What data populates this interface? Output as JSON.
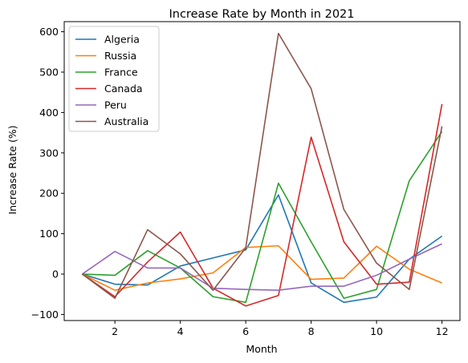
{
  "chart_data": {
    "type": "line",
    "title": "Increase Rate by Month in 2021",
    "xlabel": "Month",
    "ylabel": "Increase Rate (%)",
    "x": [
      1,
      2,
      3,
      4,
      5,
      6,
      7,
      8,
      9,
      10,
      11,
      12
    ],
    "xticks": [
      2,
      4,
      6,
      8,
      10,
      12
    ],
    "yticks": [
      -100,
      0,
      100,
      200,
      300,
      400,
      500,
      600
    ],
    "xlim": [
      0.45,
      12.55
    ],
    "ylim": [
      -115,
      625
    ],
    "grid": false,
    "legend_position": "top-left",
    "series": [
      {
        "name": "Algeria",
        "color": "#1f77b4",
        "values": [
          0,
          -25,
          -27,
          20,
          40,
          60,
          196,
          -22,
          -70,
          -57,
          37,
          94
        ]
      },
      {
        "name": "Russia",
        "color": "#ff7f0e",
        "values": [
          0,
          -40,
          -22,
          -12,
          3,
          66,
          70,
          -13,
          -10,
          69,
          12,
          -22
        ]
      },
      {
        "name": "France",
        "color": "#2ca02c",
        "values": [
          0,
          -3,
          58,
          15,
          -56,
          -70,
          225,
          80,
          -60,
          -38,
          231,
          353
        ]
      },
      {
        "name": "Canada",
        "color": "#d62728",
        "values": [
          0,
          -56,
          30,
          104,
          -35,
          -79,
          -53,
          339,
          80,
          -25,
          -20,
          421
        ]
      },
      {
        "name": "Peru",
        "color": "#9467bd",
        "values": [
          0,
          56,
          15,
          15,
          -35,
          -38,
          -40,
          -30,
          -30,
          -3,
          37,
          75
        ]
      },
      {
        "name": "Australia",
        "color": "#8c564b",
        "values": [
          0,
          -60,
          110,
          50,
          -40,
          65,
          596,
          459,
          160,
          27,
          -38,
          366
        ]
      }
    ]
  }
}
